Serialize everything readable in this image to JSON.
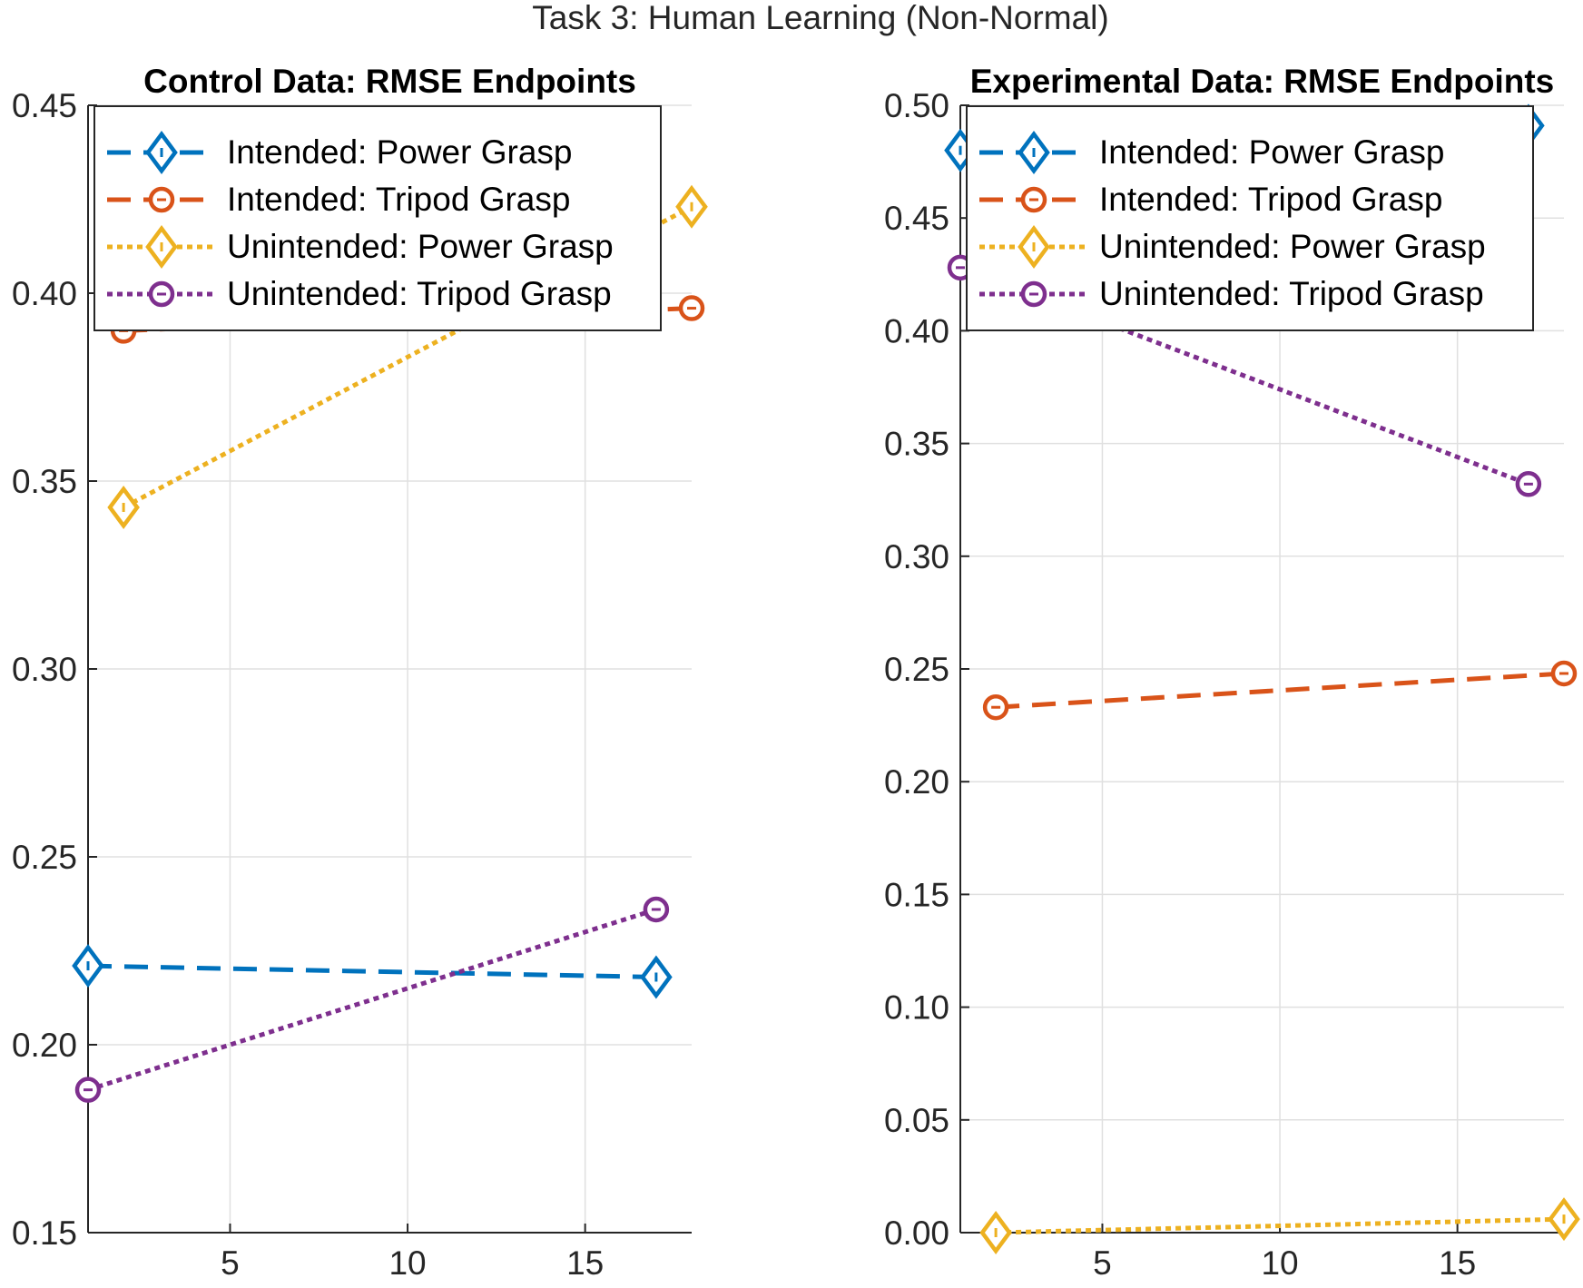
{
  "figure_title": "Task 3: Human Learning (Non-Normal)",
  "chart_data": [
    {
      "type": "line",
      "title": "Control Data: RMSE Endpoints",
      "xlabel": "",
      "ylabel": "",
      "xlim": [
        1,
        18
      ],
      "ylim": [
        0.15,
        0.45
      ],
      "xticks": [
        "5",
        "10",
        "15"
      ],
      "yticks": [
        "0.15",
        "0.20",
        "0.25",
        "0.30",
        "0.35",
        "0.40",
        "0.45"
      ],
      "grid": true,
      "legend_position": "top-left",
      "series": [
        {
          "name": "Intended: Power Grasp",
          "color": "#0072BD",
          "line": "dashed",
          "marker": "diamond",
          "x": [
            1,
            17
          ],
          "y": [
            0.221,
            0.218
          ]
        },
        {
          "name": "Intended: Tripod Grasp",
          "color": "#D95319",
          "line": "dashed",
          "marker": "circle",
          "x": [
            2,
            18
          ],
          "y": [
            0.39,
            0.396
          ]
        },
        {
          "name": "Unintended: Power Grasp",
          "color": "#EDB120",
          "line": "dotted",
          "marker": "diamond",
          "x": [
            2,
            18
          ],
          "y": [
            0.343,
            0.423
          ]
        },
        {
          "name": "Unintended: Tripod Grasp",
          "color": "#7E2F8E",
          "line": "dotted",
          "marker": "circle",
          "x": [
            1,
            17
          ],
          "y": [
            0.188,
            0.236
          ]
        }
      ]
    },
    {
      "type": "line",
      "title": "Experimental Data: RMSE Endpoints",
      "xlabel": "",
      "ylabel": "",
      "xlim": [
        1,
        18
      ],
      "ylim": [
        0.0,
        0.5
      ],
      "xticks": [
        "5",
        "10",
        "15"
      ],
      "yticks": [
        "0.00",
        "0.05",
        "0.10",
        "0.15",
        "0.20",
        "0.25",
        "0.30",
        "0.35",
        "0.40",
        "0.45",
        "0.50"
      ],
      "grid": true,
      "legend_position": "top-left",
      "series": [
        {
          "name": "Intended: Power Grasp",
          "color": "#0072BD",
          "line": "dashed",
          "marker": "diamond",
          "x": [
            1,
            17
          ],
          "y": [
            0.48,
            0.491
          ]
        },
        {
          "name": "Intended: Tripod Grasp",
          "color": "#D95319",
          "line": "dashed",
          "marker": "circle",
          "x": [
            2,
            18
          ],
          "y": [
            0.233,
            0.248
          ]
        },
        {
          "name": "Unintended: Power Grasp",
          "color": "#EDB120",
          "line": "dotted",
          "marker": "diamond",
          "x": [
            2,
            18
          ],
          "y": [
            0.0,
            0.006
          ]
        },
        {
          "name": "Unintended: Tripod Grasp",
          "color": "#7E2F8E",
          "line": "dotted",
          "marker": "circle",
          "x": [
            1,
            17
          ],
          "y": [
            0.428,
            0.332
          ]
        }
      ]
    }
  ]
}
